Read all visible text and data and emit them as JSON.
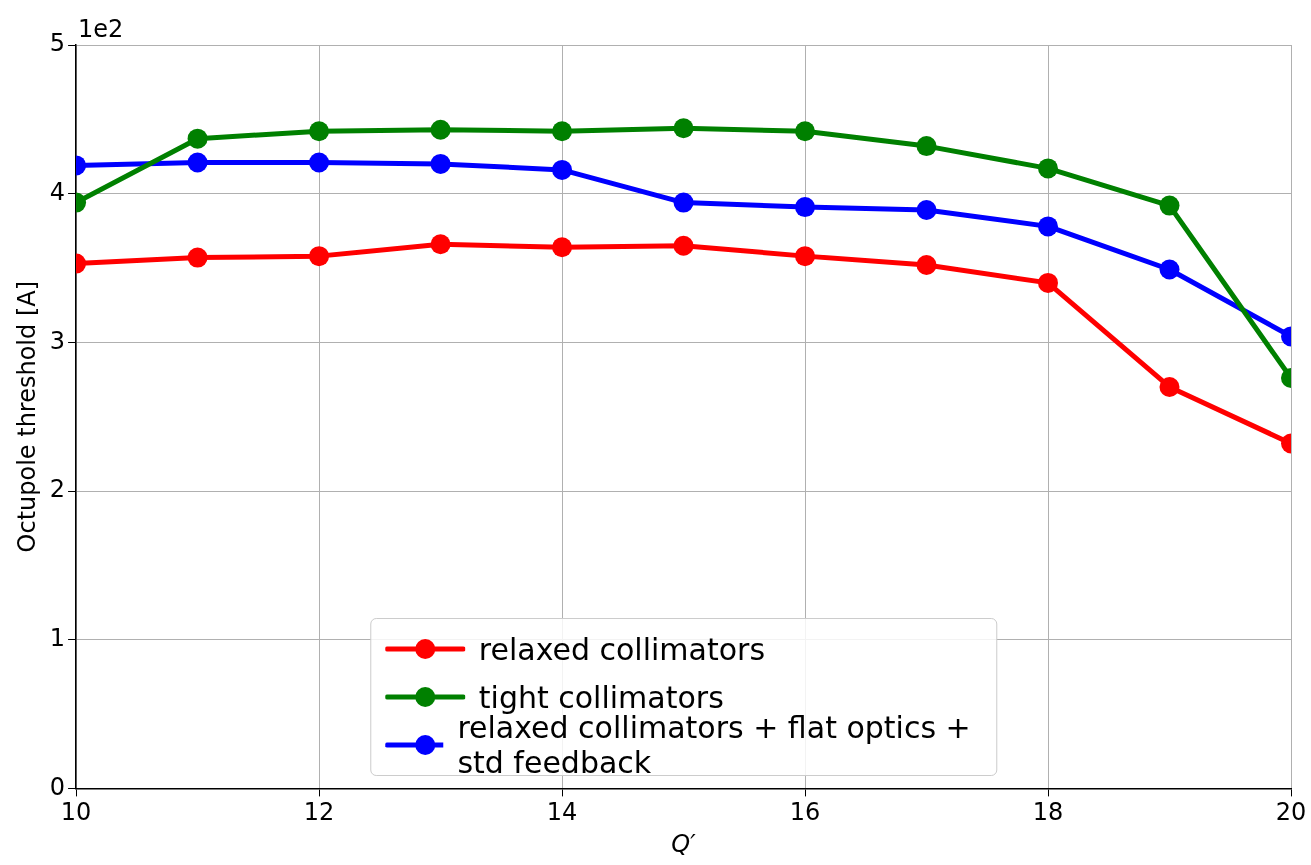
{
  "chart_data": {
    "type": "line",
    "xlabel": "Q′",
    "ylabel": "Octupole threshold [A]",
    "annotations": [
      "1e2"
    ],
    "x": [
      10,
      11,
      12,
      13,
      14,
      15,
      16,
      17,
      18,
      19,
      20
    ],
    "series": [
      {
        "name": "relaxed collimators",
        "color": "#ff0000",
        "values": [
          3.53,
          3.57,
          3.58,
          3.66,
          3.64,
          3.65,
          3.58,
          3.52,
          3.4,
          2.7,
          2.32
        ]
      },
      {
        "name": "tight collimators",
        "color": "#008000",
        "values": [
          3.94,
          4.37,
          4.42,
          4.43,
          4.42,
          4.44,
          4.42,
          4.32,
          4.17,
          3.92,
          2.76
        ]
      },
      {
        "name": "relaxed collimators + flat optics + std feedback",
        "color": "#0000ff",
        "values": [
          4.19,
          4.21,
          4.21,
          4.2,
          4.16,
          3.94,
          3.91,
          3.89,
          3.78,
          3.49,
          3.04
        ]
      }
    ],
    "xlim": [
      10,
      20
    ],
    "xticks": [
      10,
      12,
      14,
      16,
      18,
      20
    ],
    "ylim": [
      0,
      5
    ],
    "yticks": [
      0,
      1,
      2,
      3,
      4,
      5
    ],
    "grid": true,
    "legend": "bottom",
    "marker": "circle",
    "line_style": "solid"
  }
}
